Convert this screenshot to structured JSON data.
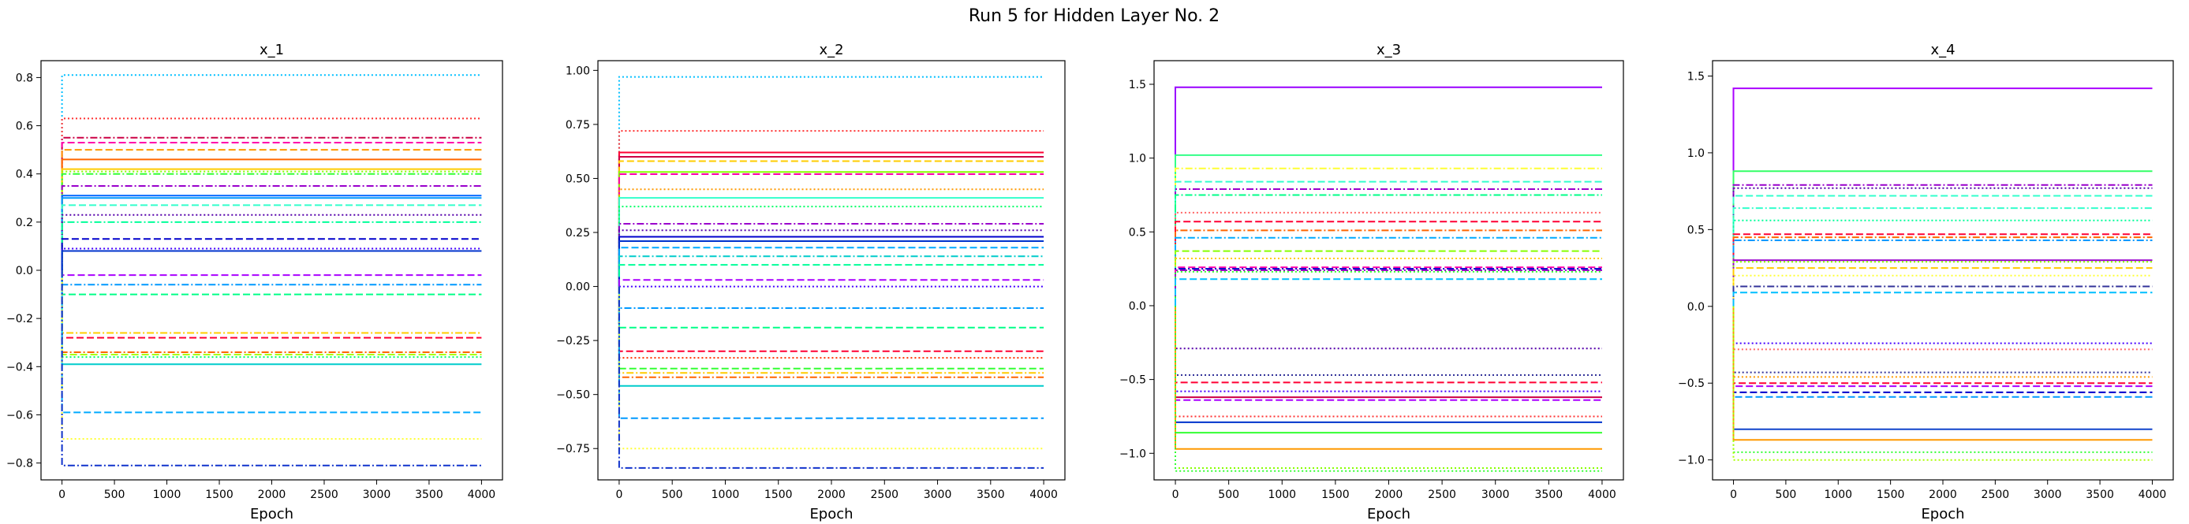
{
  "figure": {
    "suptitle": "Run 5 for Hidden Layer No. 2"
  },
  "chart_data": [
    {
      "type": "line",
      "title": "x_1",
      "xlabel": "Epoch",
      "ylabel": "",
      "xlim": [
        -200,
        4200
      ],
      "ylim": [
        -0.87,
        0.87
      ],
      "xticks": [
        0,
        500,
        1000,
        1500,
        2000,
        2500,
        3000,
        3500,
        4000
      ],
      "yticks": [
        -0.8,
        -0.6,
        -0.4,
        -0.2,
        0.0,
        0.2,
        0.4,
        0.6,
        0.8
      ],
      "ytick_labels": [
        "−0.8",
        "−0.6",
        "−0.4",
        "−0.2",
        "0.0",
        "0.2",
        "0.4",
        "0.6",
        "0.8"
      ],
      "grid": false,
      "series": [
        {
          "values": [
            0.81
          ],
          "color": "#00bfff",
          "style": "dotted"
        },
        {
          "values": [
            0.63
          ],
          "color": "#ff3333",
          "style": "dotted"
        },
        {
          "values": [
            0.55
          ],
          "color": "#cc0044",
          "style": "dashdot"
        },
        {
          "values": [
            0.53
          ],
          "color": "#ff00aa",
          "style": "dashed"
        },
        {
          "values": [
            0.5
          ],
          "color": "#ff9900",
          "style": "dashed"
        },
        {
          "values": [
            0.46
          ],
          "color": "#ff6600",
          "style": "solid"
        },
        {
          "values": [
            0.42
          ],
          "color": "#ffcc00",
          "style": "solid"
        },
        {
          "values": [
            0.41
          ],
          "color": "#88ff00",
          "style": "dotted"
        },
        {
          "values": [
            0.4
          ],
          "color": "#33ff33",
          "style": "dashdot"
        },
        {
          "values": [
            0.35
          ],
          "color": "#9900cc",
          "style": "dashdot"
        },
        {
          "values": [
            0.31
          ],
          "color": "#0066ff",
          "style": "solid"
        },
        {
          "values": [
            0.3
          ],
          "color": "#0099ff",
          "style": "solid"
        },
        {
          "values": [
            0.27
          ],
          "color": "#33ffcc",
          "style": "dashed"
        },
        {
          "values": [
            0.23
          ],
          "color": "#5500aa",
          "style": "dotted"
        },
        {
          "values": [
            0.2
          ],
          "color": "#00ff99",
          "style": "dashdot"
        },
        {
          "values": [
            0.13
          ],
          "color": "#0000cc",
          "style": "dashed"
        },
        {
          "values": [
            0.09
          ],
          "color": "#4400ff",
          "style": "dotted"
        },
        {
          "values": [
            0.08
          ],
          "color": "#0033cc",
          "style": "solid"
        },
        {
          "values": [
            -0.02
          ],
          "color": "#aa00ff",
          "style": "dashed"
        },
        {
          "values": [
            -0.06
          ],
          "color": "#0099ff",
          "style": "dashdot"
        },
        {
          "values": [
            -0.1
          ],
          "color": "#00ff88",
          "style": "dashed"
        },
        {
          "values": [
            -0.26
          ],
          "color": "#ffcc00",
          "style": "dashdot"
        },
        {
          "values": [
            -0.28
          ],
          "color": "#ff0033",
          "style": "dashed"
        },
        {
          "values": [
            -0.34
          ],
          "color": "#ff6600",
          "style": "dashdot"
        },
        {
          "values": [
            -0.35
          ],
          "color": "#aaff00",
          "style": "dashed"
        },
        {
          "values": [
            -0.36
          ],
          "color": "#00ff66",
          "style": "dotted"
        },
        {
          "values": [
            -0.39
          ],
          "color": "#00cccc",
          "style": "solid"
        },
        {
          "values": [
            -0.59
          ],
          "color": "#00aaff",
          "style": "dashed"
        },
        {
          "values": [
            -0.7
          ],
          "color": "#ffff33",
          "style": "dotted"
        },
        {
          "values": [
            -0.81
          ],
          "color": "#1133cc",
          "style": "dashdot"
        }
      ]
    },
    {
      "type": "line",
      "title": "x_2",
      "xlabel": "Epoch",
      "ylabel": "",
      "xlim": [
        -200,
        4200
      ],
      "ylim": [
        -0.895,
        1.045
      ],
      "xticks": [
        0,
        500,
        1000,
        1500,
        2000,
        2500,
        3000,
        3500,
        4000
      ],
      "yticks": [
        -0.75,
        -0.5,
        -0.25,
        0.0,
        0.25,
        0.5,
        0.75,
        1.0
      ],
      "ytick_labels": [
        "−0.75",
        "−0.50",
        "−0.25",
        "0.00",
        "0.25",
        "0.50",
        "0.75",
        "1.00"
      ],
      "grid": false,
      "series": [
        {
          "values": [
            0.97
          ],
          "color": "#00bfff",
          "style": "dotted"
        },
        {
          "values": [
            0.72
          ],
          "color": "#ff3333",
          "style": "dotted"
        },
        {
          "values": [
            0.62
          ],
          "color": "#ff0033",
          "style": "solid"
        },
        {
          "values": [
            0.6
          ],
          "color": "#cc0044",
          "style": "solid"
        },
        {
          "values": [
            0.58
          ],
          "color": "#ffcc00",
          "style": "dashed"
        },
        {
          "values": [
            0.53
          ],
          "color": "#88ff00",
          "style": "solid"
        },
        {
          "values": [
            0.52
          ],
          "color": "#ff00aa",
          "style": "dashed"
        },
        {
          "values": [
            0.45
          ],
          "color": "#ff9900",
          "style": "dotted"
        },
        {
          "values": [
            0.41
          ],
          "color": "#33ffcc",
          "style": "solid"
        },
        {
          "values": [
            0.37
          ],
          "color": "#00ff66",
          "style": "dotted"
        },
        {
          "values": [
            0.29
          ],
          "color": "#9900cc",
          "style": "dashdot"
        },
        {
          "values": [
            0.26
          ],
          "color": "#5500aa",
          "style": "dotted"
        },
        {
          "values": [
            0.23
          ],
          "color": "#0000cc",
          "style": "solid"
        },
        {
          "values": [
            0.21
          ],
          "color": "#0033cc",
          "style": "solid"
        },
        {
          "values": [
            0.18
          ],
          "color": "#00aaff",
          "style": "dashed"
        },
        {
          "values": [
            0.14
          ],
          "color": "#00cccc",
          "style": "dashdot"
        },
        {
          "values": [
            0.1
          ],
          "color": "#00ff99",
          "style": "dashed"
        },
        {
          "values": [
            0.03
          ],
          "color": "#aa00ff",
          "style": "dashed"
        },
        {
          "values": [
            0.0
          ],
          "color": "#4400ff",
          "style": "dotted"
        },
        {
          "values": [
            -0.1
          ],
          "color": "#0099ff",
          "style": "dashdot"
        },
        {
          "values": [
            -0.19
          ],
          "color": "#00ff88",
          "style": "dashed"
        },
        {
          "values": [
            -0.3
          ],
          "color": "#ff0033",
          "style": "dashed"
        },
        {
          "values": [
            -0.33
          ],
          "color": "#ff3300",
          "style": "dotted"
        },
        {
          "values": [
            -0.38
          ],
          "color": "#33ff33",
          "style": "dashed"
        },
        {
          "values": [
            -0.4
          ],
          "color": "#ffcc00",
          "style": "dashdot"
        },
        {
          "values": [
            -0.42
          ],
          "color": "#ff6600",
          "style": "dashdot"
        },
        {
          "values": [
            -0.46
          ],
          "color": "#00cccc",
          "style": "solid"
        },
        {
          "values": [
            -0.61
          ],
          "color": "#0099ff",
          "style": "dashed"
        },
        {
          "values": [
            -0.75
          ],
          "color": "#ffff33",
          "style": "dotted"
        },
        {
          "values": [
            -0.84
          ],
          "color": "#1133cc",
          "style": "dashdot"
        }
      ]
    },
    {
      "type": "line",
      "title": "x_3",
      "xlabel": "Epoch",
      "ylabel": "",
      "xlim": [
        -200,
        4200
      ],
      "ylim": [
        -1.18,
        1.66
      ],
      "xticks": [
        0,
        500,
        1000,
        1500,
        2000,
        2500,
        3000,
        3500,
        4000
      ],
      "yticks": [
        -1.0,
        -0.5,
        0.0,
        0.5,
        1.0,
        1.5
      ],
      "ytick_labels": [
        "−1.0",
        "−0.5",
        "0.0",
        "0.5",
        "1.0",
        "1.5"
      ],
      "grid": false,
      "series": [
        {
          "values": [
            1.48
          ],
          "color": "#9900ff",
          "style": "solid"
        },
        {
          "values": [
            1.02
          ],
          "color": "#33ff88",
          "style": "solid"
        },
        {
          "values": [
            0.93
          ],
          "color": "#ffff33",
          "style": "dashdot"
        },
        {
          "values": [
            0.84
          ],
          "color": "#33ffcc",
          "style": "dashed"
        },
        {
          "values": [
            0.79
          ],
          "color": "#9900cc",
          "style": "dashdot"
        },
        {
          "values": [
            0.75
          ],
          "color": "#00ff88",
          "style": "dashdot"
        },
        {
          "values": [
            0.63
          ],
          "color": "#ff6666",
          "style": "dotted"
        },
        {
          "values": [
            0.57
          ],
          "color": "#ff0033",
          "style": "dashed"
        },
        {
          "values": [
            0.51
          ],
          "color": "#ff6600",
          "style": "dashdot"
        },
        {
          "values": [
            0.46
          ],
          "color": "#00aaff",
          "style": "dashdot"
        },
        {
          "values": [
            0.37
          ],
          "color": "#88ff00",
          "style": "dashed"
        },
        {
          "values": [
            0.32
          ],
          "color": "#ffcc00",
          "style": "dotted"
        },
        {
          "values": [
            0.26
          ],
          "color": "#ff00aa",
          "style": "dashed"
        },
        {
          "values": [
            0.25
          ],
          "color": "#0000cc",
          "style": "dashdot"
        },
        {
          "values": [
            0.24
          ],
          "color": "#9900cc",
          "style": "dashdot"
        },
        {
          "values": [
            0.23
          ],
          "color": "#33ff33",
          "style": "dotted"
        },
        {
          "values": [
            0.18
          ],
          "color": "#00bfff",
          "style": "dashed"
        },
        {
          "values": [
            -0.29
          ],
          "color": "#5500aa",
          "style": "dotted"
        },
        {
          "values": [
            -0.47
          ],
          "color": "#333399",
          "style": "dotted"
        },
        {
          "values": [
            -0.52
          ],
          "color": "#ff0033",
          "style": "dashed"
        },
        {
          "values": [
            -0.58
          ],
          "color": "#4400ff",
          "style": "dotted"
        },
        {
          "values": [
            -0.62
          ],
          "color": "#cc0044",
          "style": "solid"
        },
        {
          "values": [
            -0.64
          ],
          "color": "#aa00ff",
          "style": "dashed"
        },
        {
          "values": [
            -0.75
          ],
          "color": "#ff3333",
          "style": "dotted"
        },
        {
          "values": [
            -0.79
          ],
          "color": "#0033cc",
          "style": "solid"
        },
        {
          "values": [
            -0.86
          ],
          "color": "#33ff33",
          "style": "solid"
        },
        {
          "values": [
            -0.97
          ],
          "color": "#ff9900",
          "style": "solid"
        },
        {
          "values": [
            -1.1
          ],
          "color": "#88ff00",
          "style": "dotted"
        },
        {
          "values": [
            -1.12
          ],
          "color": "#33ff33",
          "style": "dotted"
        }
      ]
    },
    {
      "type": "line",
      "title": "x_4",
      "xlabel": "Epoch",
      "ylabel": "",
      "xlim": [
        -200,
        4200
      ],
      "ylim": [
        -1.13,
        1.6
      ],
      "xticks": [
        0,
        500,
        1000,
        1500,
        2000,
        2500,
        3000,
        3500,
        4000
      ],
      "yticks": [
        -1.0,
        -0.5,
        0.0,
        0.5,
        1.0,
        1.5
      ],
      "ytick_labels": [
        "−1.0",
        "−0.5",
        "0.0",
        "0.5",
        "1.0",
        "1.5"
      ],
      "grid": false,
      "series": [
        {
          "values": [
            1.42
          ],
          "color": "#aa00ff",
          "style": "solid"
        },
        {
          "values": [
            0.88
          ],
          "color": "#33ff66",
          "style": "solid"
        },
        {
          "values": [
            0.79
          ],
          "color": "#9900cc",
          "style": "dashdot"
        },
        {
          "values": [
            0.77
          ],
          "color": "#5500aa",
          "style": "dotted"
        },
        {
          "values": [
            0.72
          ],
          "color": "#33ffcc",
          "style": "dashed"
        },
        {
          "values": [
            0.64
          ],
          "color": "#33ffcc",
          "style": "dashdot"
        },
        {
          "values": [
            0.56
          ],
          "color": "#00ff99",
          "style": "dotted"
        },
        {
          "values": [
            0.47
          ],
          "color": "#ff0033",
          "style": "dashed"
        },
        {
          "values": [
            0.45
          ],
          "color": "#ff6600",
          "style": "dashdot"
        },
        {
          "values": [
            0.43
          ],
          "color": "#0099ff",
          "style": "dashdot"
        },
        {
          "values": [
            0.3
          ],
          "color": "#9900cc",
          "style": "solid"
        },
        {
          "values": [
            0.29
          ],
          "color": "#88ff00",
          "style": "dotted"
        },
        {
          "values": [
            0.25
          ],
          "color": "#ffcc00",
          "style": "dashed"
        },
        {
          "values": [
            0.2
          ],
          "color": "#ffff33",
          "style": "dotted"
        },
        {
          "values": [
            0.13
          ],
          "color": "#333399",
          "style": "dashdot"
        },
        {
          "values": [
            0.09
          ],
          "color": "#00bfff",
          "style": "dashed"
        },
        {
          "values": [
            -0.24
          ],
          "color": "#4400ff",
          "style": "dotted"
        },
        {
          "values": [
            -0.28
          ],
          "color": "#ff6666",
          "style": "dotted"
        },
        {
          "values": [
            -0.43
          ],
          "color": "#333399",
          "style": "dotted"
        },
        {
          "values": [
            -0.46
          ],
          "color": "#ff9900",
          "style": "dotted"
        },
        {
          "values": [
            -0.5
          ],
          "color": "#ff0033",
          "style": "dashed"
        },
        {
          "values": [
            -0.52
          ],
          "color": "#aa00ff",
          "style": "dashed"
        },
        {
          "values": [
            -0.56
          ],
          "color": "#0000cc",
          "style": "dashed"
        },
        {
          "values": [
            -0.59
          ],
          "color": "#0099ff",
          "style": "dashed"
        },
        {
          "values": [
            -0.8
          ],
          "color": "#1144cc",
          "style": "solid"
        },
        {
          "values": [
            -0.87
          ],
          "color": "#ff9900",
          "style": "solid"
        },
        {
          "values": [
            -0.95
          ],
          "color": "#33ff33",
          "style": "dotted"
        },
        {
          "values": [
            -1.0
          ],
          "color": "#aaff00",
          "style": "dotted"
        }
      ]
    }
  ]
}
